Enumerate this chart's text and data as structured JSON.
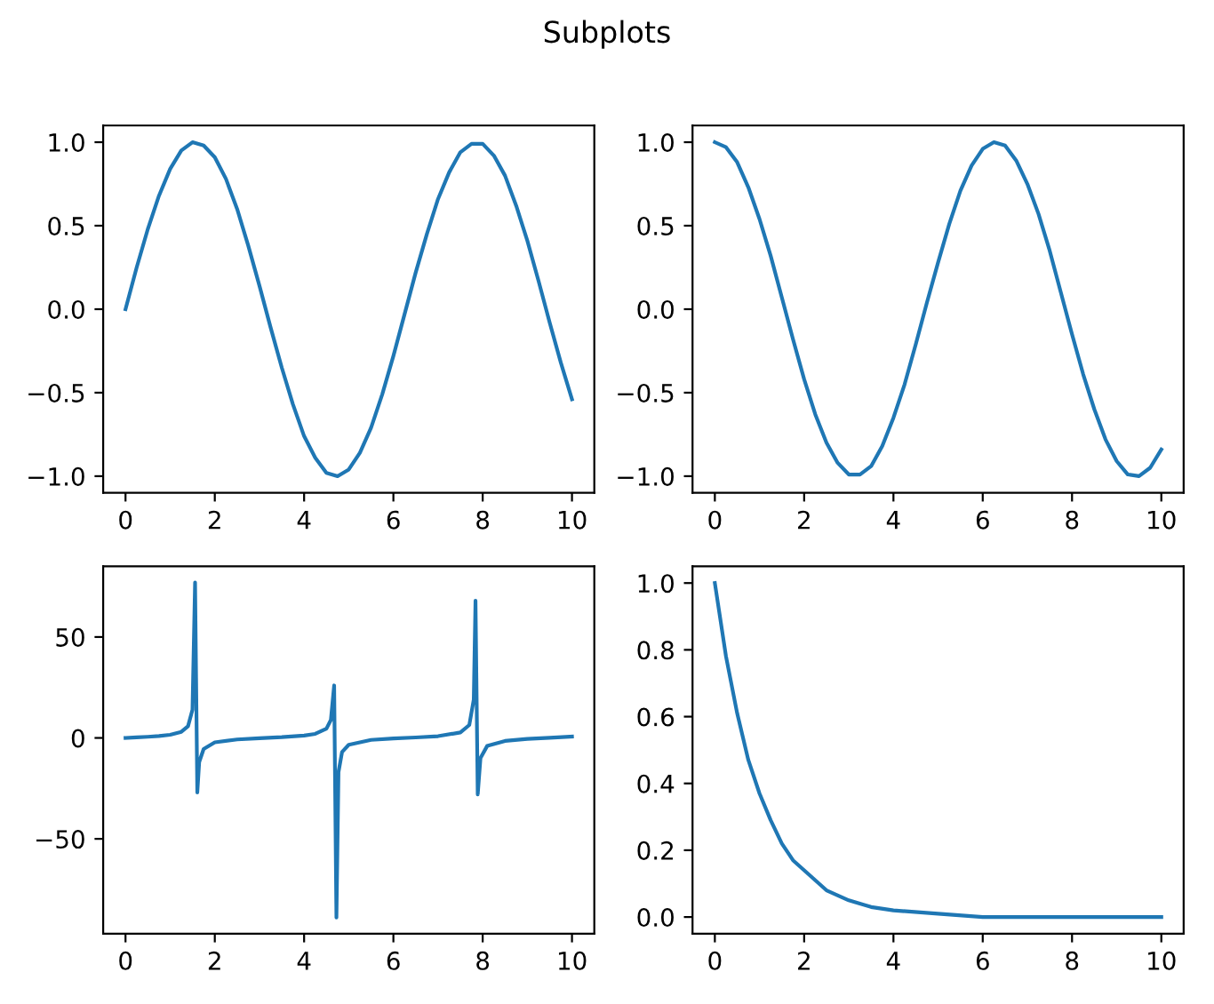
{
  "chart_data": [
    {
      "type": "line",
      "title": "Subplots",
      "x": [
        0,
        0.25,
        0.5,
        0.75,
        1,
        1.25,
        1.5,
        1.75,
        2,
        2.25,
        2.5,
        2.75,
        3,
        3.25,
        3.5,
        3.75,
        4,
        4.25,
        4.5,
        4.75,
        5,
        5.25,
        5.5,
        5.75,
        6,
        6.25,
        6.5,
        6.75,
        7,
        7.25,
        7.5,
        7.75,
        8,
        8.25,
        8.5,
        8.75,
        9,
        9.25,
        9.5,
        9.75,
        10
      ],
      "series": [
        {
          "color": "#1f77b4",
          "values": [
            0,
            0.25,
            0.48,
            0.68,
            0.84,
            0.95,
            1.0,
            0.98,
            0.91,
            0.78,
            0.6,
            0.38,
            0.14,
            -0.11,
            -0.35,
            -0.57,
            -0.76,
            -0.89,
            -0.98,
            -1.0,
            -0.96,
            -0.86,
            -0.71,
            -0.51,
            -0.28,
            -0.03,
            0.22,
            0.45,
            0.66,
            0.82,
            0.94,
            0.99,
            0.99,
            0.92,
            0.8,
            0.62,
            0.41,
            0.17,
            -0.08,
            -0.32,
            -0.54
          ]
        }
      ],
      "xlim": [
        -0.5,
        10.5
      ],
      "xticks": [
        0,
        2,
        4,
        6,
        8,
        10
      ],
      "ylim": [
        -1.1,
        1.1
      ],
      "yticks": [
        {
          "value": -1,
          "label": "−1.0"
        },
        {
          "value": -0.5,
          "label": "−0.5"
        },
        {
          "value": 0,
          "label": "0.0"
        },
        {
          "value": 0.5,
          "label": "0.5"
        },
        {
          "value": 1,
          "label": "1.0"
        }
      ]
    },
    {
      "type": "line",
      "x": [
        0,
        0.25,
        0.5,
        0.75,
        1,
        1.25,
        1.5,
        1.75,
        2,
        2.25,
        2.5,
        2.75,
        3,
        3.25,
        3.5,
        3.75,
        4,
        4.25,
        4.5,
        4.75,
        5,
        5.25,
        5.5,
        5.75,
        6,
        6.25,
        6.5,
        6.75,
        7,
        7.25,
        7.5,
        7.75,
        8,
        8.25,
        8.5,
        8.75,
        9,
        9.25,
        9.5,
        9.75,
        10
      ],
      "series": [
        {
          "color": "#1f77b4",
          "values": [
            1,
            0.97,
            0.88,
            0.73,
            0.54,
            0.32,
            0.07,
            -0.18,
            -0.42,
            -0.63,
            -0.8,
            -0.92,
            -0.99,
            -0.99,
            -0.94,
            -0.82,
            -0.65,
            -0.45,
            -0.21,
            0.04,
            0.28,
            0.51,
            0.71,
            0.86,
            0.96,
            1.0,
            0.98,
            0.89,
            0.75,
            0.57,
            0.35,
            0.1,
            -0.15,
            -0.39,
            -0.6,
            -0.78,
            -0.91,
            -0.99,
            -1.0,
            -0.95,
            -0.84
          ]
        }
      ],
      "xlim": [
        -0.5,
        10.5
      ],
      "xticks": [
        0,
        2,
        4,
        6,
        8,
        10
      ],
      "ylim": [
        -1.1,
        1.1
      ],
      "yticks": [
        {
          "value": -1,
          "label": "−1.0"
        },
        {
          "value": -0.5,
          "label": "−0.5"
        },
        {
          "value": 0,
          "label": "0.0"
        },
        {
          "value": 0.5,
          "label": "0.5"
        },
        {
          "value": 1,
          "label": "1.0"
        }
      ]
    },
    {
      "type": "line",
      "x": [
        0,
        0.25,
        0.5,
        0.75,
        1,
        1.25,
        1.4,
        1.5,
        1.558,
        1.608,
        1.65,
        1.75,
        2,
        2.5,
        3,
        3.5,
        4,
        4.25,
        4.5,
        4.6,
        4.673,
        4.724,
        4.77,
        4.85,
        5,
        5.5,
        6,
        6.5,
        7,
        7.5,
        7.7,
        7.8,
        7.839,
        7.889,
        7.95,
        8.1,
        8.5,
        9,
        9.5,
        10
      ],
      "series": [
        {
          "color": "#1f77b4",
          "values": [
            0,
            0.26,
            0.55,
            0.93,
            1.56,
            3.0,
            5.8,
            14,
            77,
            -27,
            -12,
            -5.5,
            -2.2,
            -0.75,
            -0.14,
            0.37,
            1.16,
            2.0,
            4.6,
            8.9,
            26,
            -89,
            -17,
            -7,
            -3.4,
            -0.99,
            -0.29,
            0.22,
            0.87,
            2.7,
            6.4,
            19,
            68,
            -28,
            -10,
            -4,
            -1.5,
            -0.45,
            0.08,
            0.65
          ]
        }
      ],
      "xlim": [
        -0.5,
        10.5
      ],
      "xticks": [
        0,
        2,
        4,
        6,
        8,
        10
      ],
      "ylim": [
        -97,
        85
      ],
      "yticks": [
        {
          "value": -50,
          "label": "−50"
        },
        0,
        50
      ]
    },
    {
      "type": "line",
      "x": [
        0,
        0.25,
        0.5,
        0.75,
        1,
        1.25,
        1.5,
        1.75,
        2,
        2.5,
        3,
        3.5,
        4,
        5,
        6,
        7,
        8,
        9,
        10
      ],
      "series": [
        {
          "color": "#1f77b4",
          "values": [
            1,
            0.78,
            0.61,
            0.47,
            0.37,
            0.29,
            0.22,
            0.17,
            0.14,
            0.08,
            0.05,
            0.03,
            0.02,
            0.01,
            0,
            0,
            0,
            0,
            0
          ]
        }
      ],
      "xlim": [
        -0.5,
        10.5
      ],
      "xticks": [
        0,
        2,
        4,
        6,
        8,
        10
      ],
      "ylim": [
        -0.05,
        1.05
      ],
      "yticks": [
        {
          "value": 0,
          "label": "0.0"
        },
        {
          "value": 0.2,
          "label": "0.2"
        },
        {
          "value": 0.4,
          "label": "0.4"
        },
        {
          "value": 0.6,
          "label": "0.6"
        },
        {
          "value": 0.8,
          "label": "0.8"
        },
        {
          "value": 1,
          "label": "1.0"
        }
      ]
    }
  ]
}
